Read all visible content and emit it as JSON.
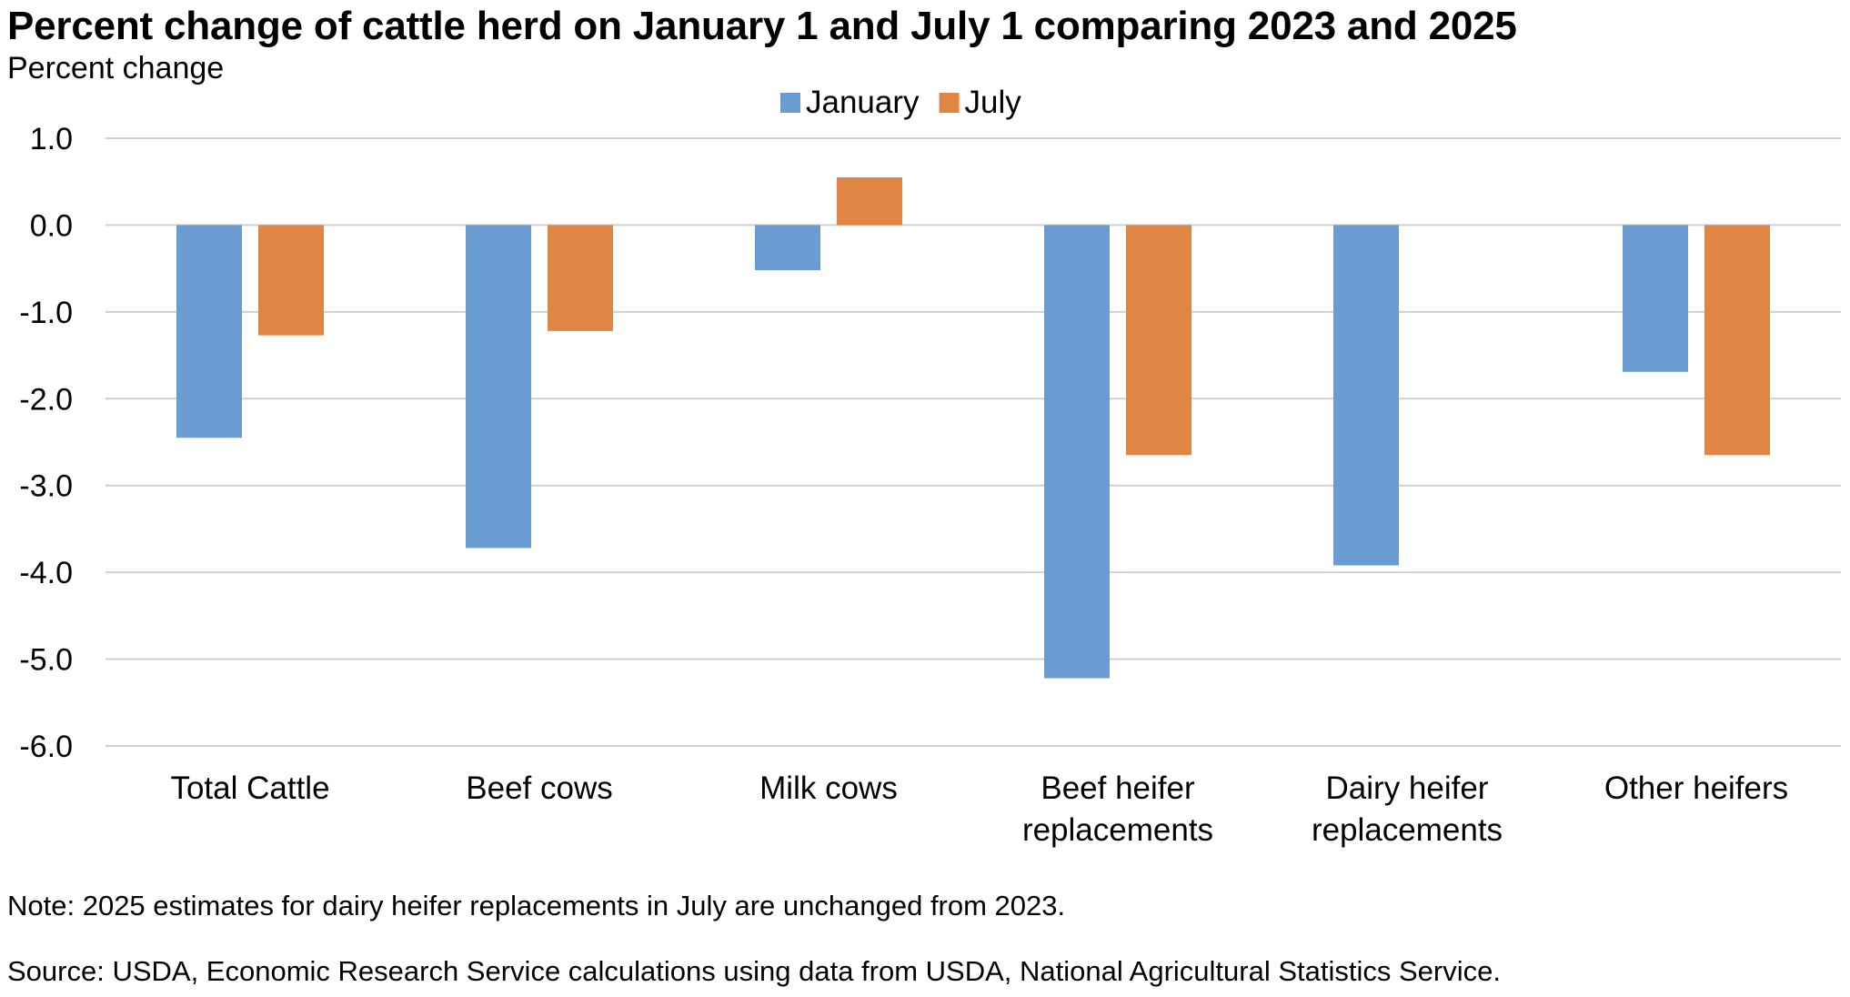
{
  "chart_data": {
    "type": "bar",
    "title": "Percent change of cattle herd on January 1 and July 1 comparing 2023 and 2025",
    "ylabel": "Percent change",
    "xlabel": "",
    "categories": [
      [
        "Total Cattle"
      ],
      [
        "Beef cows"
      ],
      [
        "Milk cows"
      ],
      [
        "Beef heifer",
        "replacements"
      ],
      [
        "Dairy heifer",
        "replacements"
      ],
      [
        "Other heifers"
      ]
    ],
    "series": [
      {
        "name": "January",
        "color": "#6a9bd1",
        "values": [
          -2.45,
          -3.72,
          -0.52,
          -5.22,
          -3.92,
          -1.69
        ]
      },
      {
        "name": "July",
        "color": "#e08645",
        "values": [
          -1.27,
          -1.22,
          0.55,
          -2.65,
          0.0,
          -2.65
        ]
      }
    ],
    "ylim": [
      -6.0,
      1.0
    ],
    "yticks": [
      "1.0",
      "0.0",
      "-1.0",
      "-2.0",
      "-3.0",
      "-4.0",
      "-5.0",
      "-6.0"
    ],
    "grid": true,
    "legend_position": "top-center",
    "note": "Note: 2025 estimates for dairy heifer replacements in July are unchanged from 2023.",
    "source": "Source: USDA, Economic Research Service calculations using data from USDA, National Agricultural Statistics Service."
  }
}
